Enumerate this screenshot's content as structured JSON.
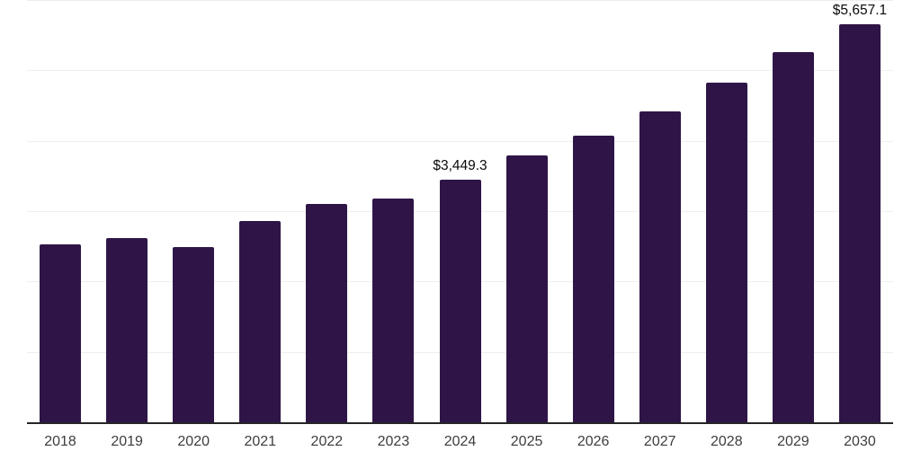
{
  "chart_data": {
    "type": "bar",
    "title": "",
    "categories": [
      "2018",
      "2019",
      "2020",
      "2021",
      "2022",
      "2023",
      "2024",
      "2025",
      "2026",
      "2027",
      "2028",
      "2029",
      "2030"
    ],
    "values": [
      2529,
      2617,
      2489,
      2860,
      3102,
      3179,
      3449.3,
      3792,
      4068,
      4413,
      4826,
      5260,
      5657.1
    ],
    "data_labels": {
      "2024": "$3,449.3",
      "2030": "$5,657.1"
    },
    "xlabel": "",
    "ylabel": "",
    "ylim": [
      0,
      6000
    ],
    "gridline_values": [
      1000,
      2000,
      3000,
      4000,
      5000,
      6000
    ],
    "grid": "horizontal",
    "legend_position": "none",
    "bar_color": "#2f1547",
    "axis_line_color": "#262626",
    "gridline_color": "#eeeeee",
    "tick_label_color": "#3d3d3d",
    "data_label_color": "#0a0a0a",
    "background_color": "#ffffff"
  }
}
